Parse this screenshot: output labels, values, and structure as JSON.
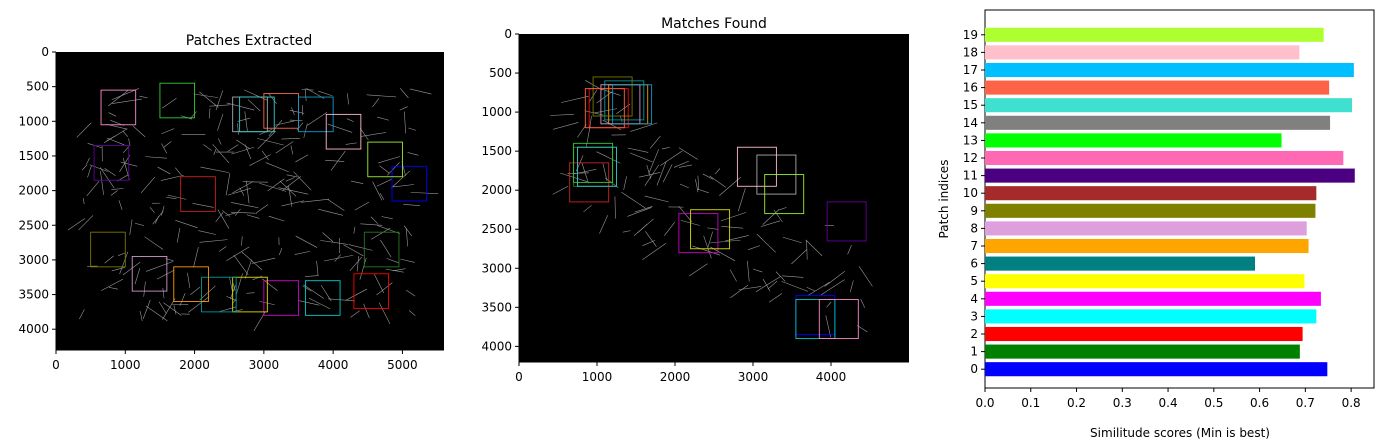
{
  "panels": {
    "left": {
      "title": "Patches Extracted"
    },
    "middle": {
      "title": "Matches Found"
    }
  },
  "chart_data": [
    {
      "type": "image",
      "title": "Patches Extracted",
      "xlim": [
        0,
        5600
      ],
      "ylim": [
        4300,
        0
      ],
      "xticks": [
        "0",
        "1000",
        "2000",
        "3000",
        "4000",
        "5000"
      ],
      "yticks": [
        "0",
        "500",
        "1000",
        "1500",
        "2000",
        "2500",
        "3000",
        "3500",
        "4000"
      ],
      "image_extent": [
        0,
        5600,
        4300,
        0
      ],
      "patches": [
        {
          "index": 0,
          "x": 4850,
          "y": 1650,
          "size": 500,
          "color": "#0000ff"
        },
        {
          "index": 1,
          "x": 4450,
          "y": 2600,
          "size": 500,
          "color": "#1f7a1f"
        },
        {
          "index": 2,
          "x": 4300,
          "y": 3200,
          "size": 500,
          "color": "#ff0000"
        },
        {
          "index": 3,
          "x": 3600,
          "y": 3300,
          "size": 500,
          "color": "#00cccc"
        },
        {
          "index": 4,
          "x": 3000,
          "y": 3300,
          "size": 500,
          "color": "#cc00cc"
        },
        {
          "index": 5,
          "x": 2550,
          "y": 3250,
          "size": 500,
          "color": "#dddd00"
        },
        {
          "index": 6,
          "x": 2100,
          "y": 3250,
          "size": 500,
          "color": "#009999"
        },
        {
          "index": 7,
          "x": 1700,
          "y": 3100,
          "size": 500,
          "color": "#ff9900"
        },
        {
          "index": 8,
          "x": 1100,
          "y": 2950,
          "size": 500,
          "color": "#cc99cc"
        },
        {
          "index": 9,
          "x": 500,
          "y": 2600,
          "size": 500,
          "color": "#777700"
        },
        {
          "index": 10,
          "x": 1800,
          "y": 1800,
          "size": 500,
          "color": "#cc2222"
        },
        {
          "index": 11,
          "x": 550,
          "y": 1350,
          "size": 500,
          "color": "#660099"
        },
        {
          "index": 12,
          "x": 650,
          "y": 550,
          "size": 500,
          "color": "#ff88cc"
        },
        {
          "index": 13,
          "x": 1500,
          "y": 450,
          "size": 500,
          "color": "#33cc33"
        },
        {
          "index": 14,
          "x": 2550,
          "y": 650,
          "size": 500,
          "color": "#aaaaaa"
        },
        {
          "index": 15,
          "x": 2650,
          "y": 650,
          "size": 500,
          "color": "#33cccc"
        },
        {
          "index": 16,
          "x": 3000,
          "y": 600,
          "size": 500,
          "color": "#ff6644"
        },
        {
          "index": 17,
          "x": 3500,
          "y": 650,
          "size": 500,
          "color": "#1199cc"
        },
        {
          "index": 18,
          "x": 3900,
          "y": 900,
          "size": 500,
          "color": "#ffbbcc"
        },
        {
          "index": 19,
          "x": 4500,
          "y": 1300,
          "size": 500,
          "color": "#99ee33"
        }
      ]
    },
    {
      "type": "image",
      "title": "Matches Found",
      "xlim": [
        0,
        5000
      ],
      "ylim": [
        4200,
        0
      ],
      "xticks": [
        "0",
        "1000",
        "2000",
        "3000",
        "4000"
      ],
      "yticks": [
        "0",
        "500",
        "1000",
        "1500",
        "2000",
        "2500",
        "3000",
        "3500",
        "4000"
      ],
      "image_extent": [
        0,
        5000,
        4200,
        0
      ],
      "patches": [
        {
          "index": 0,
          "x": 3550,
          "y": 3350,
          "size": 500,
          "color": "#0000ff"
        },
        {
          "index": 1,
          "x": 700,
          "y": 1450,
          "size": 500,
          "color": "#1f7a1f"
        },
        {
          "index": 2,
          "x": 900,
          "y": 700,
          "size": 500,
          "color": "#ff0000"
        },
        {
          "index": 3,
          "x": 3550,
          "y": 3400,
          "size": 500,
          "color": "#00cccc"
        },
        {
          "index": 4,
          "x": 2050,
          "y": 2300,
          "size": 500,
          "color": "#cc00cc"
        },
        {
          "index": 5,
          "x": 2200,
          "y": 2250,
          "size": 500,
          "color": "#dddd00"
        },
        {
          "index": 6,
          "x": 1100,
          "y": 600,
          "size": 500,
          "color": "#009999"
        },
        {
          "index": 7,
          "x": 1150,
          "y": 650,
          "size": 500,
          "color": "#ff9900"
        },
        {
          "index": 8,
          "x": 1050,
          "y": 650,
          "size": 500,
          "color": "#cc99cc"
        },
        {
          "index": 9,
          "x": 950,
          "y": 550,
          "size": 500,
          "color": "#777700"
        },
        {
          "index": 10,
          "x": 650,
          "y": 1650,
          "size": 500,
          "color": "#cc2222"
        },
        {
          "index": 11,
          "x": 3950,
          "y": 2150,
          "size": 500,
          "color": "#660099"
        },
        {
          "index": 12,
          "x": 3850,
          "y": 3400,
          "size": 500,
          "color": "#ff88cc"
        },
        {
          "index": 13,
          "x": 700,
          "y": 1400,
          "size": 500,
          "color": "#33cc33"
        },
        {
          "index": 14,
          "x": 3050,
          "y": 1550,
          "size": 500,
          "color": "#aaaaaa"
        },
        {
          "index": 15,
          "x": 750,
          "y": 1450,
          "size": 500,
          "color": "#33cccc"
        },
        {
          "index": 16,
          "x": 850,
          "y": 700,
          "size": 500,
          "color": "#ff6644"
        },
        {
          "index": 17,
          "x": 1200,
          "y": 650,
          "size": 500,
          "color": "#1199cc"
        },
        {
          "index": 18,
          "x": 2800,
          "y": 1450,
          "size": 500,
          "color": "#ffbbcc"
        },
        {
          "index": 19,
          "x": 3150,
          "y": 1800,
          "size": 500,
          "color": "#99ee33"
        }
      ]
    },
    {
      "type": "bar",
      "orientation": "horizontal",
      "xlabel": "Similitude scores (Min is best)",
      "ylabel": "Patch indices",
      "xlim": [
        0,
        0.85
      ],
      "xticks": [
        "0.0",
        "0.1",
        "0.2",
        "0.3",
        "0.4",
        "0.5",
        "0.6",
        "0.7",
        "0.8"
      ],
      "categories": [
        "0",
        "1",
        "2",
        "3",
        "4",
        "5",
        "6",
        "7",
        "8",
        "9",
        "10",
        "11",
        "12",
        "13",
        "14",
        "15",
        "16",
        "17",
        "18",
        "19"
      ],
      "values": [
        0.748,
        0.688,
        0.694,
        0.724,
        0.734,
        0.698,
        0.59,
        0.707,
        0.703,
        0.722,
        0.724,
        0.808,
        0.783,
        0.648,
        0.754,
        0.802,
        0.752,
        0.806,
        0.687,
        0.74
      ],
      "colors": [
        "#0000ff",
        "#008000",
        "#ff0000",
        "#00ffff",
        "#ff00ff",
        "#ffff00",
        "#008080",
        "#ffa500",
        "#dda0dd",
        "#808000",
        "#a52a2a",
        "#4b0082",
        "#ff69b4",
        "#00ff00",
        "#808080",
        "#40e0d0",
        "#ff6347",
        "#00bfff",
        "#ffc0cb",
        "#adff2f"
      ]
    }
  ]
}
